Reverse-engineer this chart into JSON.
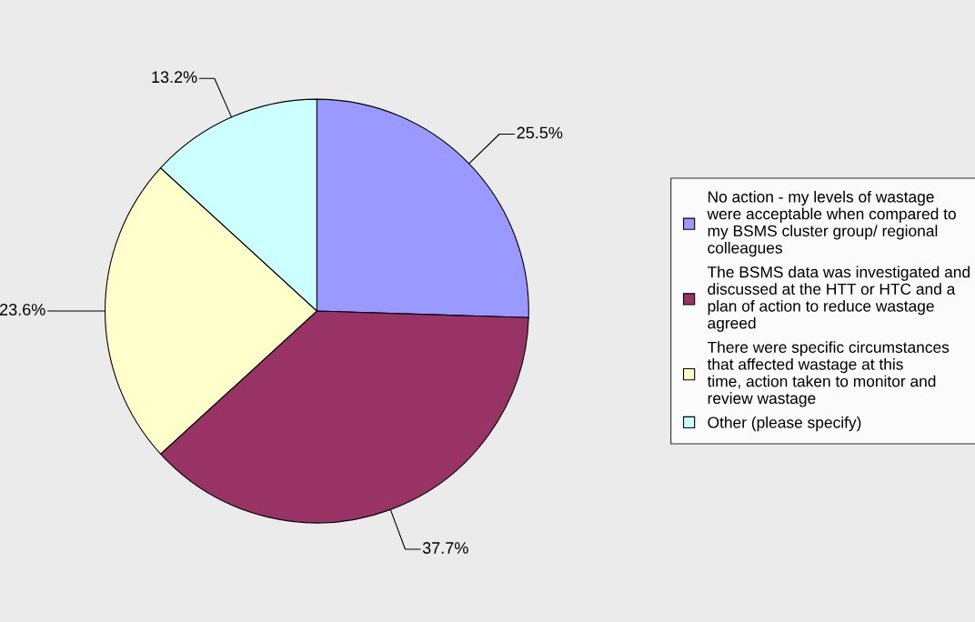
{
  "chart_data": {
    "type": "pie",
    "categories": [
      "No action - my levels of wastage were acceptable when compared to my BSMS cluster group/ regional colleagues",
      "The BSMS data was investigated and discussed at the HTT or HTC and a plan of action to reduce wastage agreed",
      "There were specific circumstances that affected wastage at this time, action taken to monitor and review wastage",
      "Other (please specify)"
    ],
    "values": [
      25.5,
      37.7,
      23.6,
      13.2
    ],
    "value_labels": [
      "25.5%",
      "37.7%",
      "23.6%",
      "13.2%"
    ],
    "colors": [
      "#9999ff",
      "#993366",
      "#ffffcc",
      "#ccffff"
    ],
    "legend": "right"
  }
}
